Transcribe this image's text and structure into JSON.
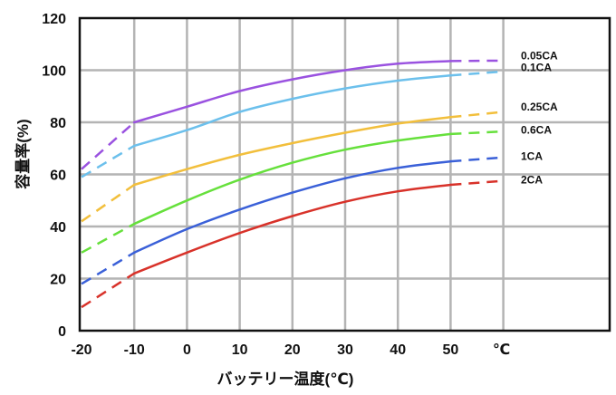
{
  "chart_data": {
    "type": "line",
    "xlabel": "バッテリー温度(℃)",
    "ylabel": "容量率(%)",
    "x_unit_tick": "℃",
    "xlim": [
      -20,
      60
    ],
    "ylim": [
      0,
      120
    ],
    "x_ticks": [
      "-20",
      "-10",
      "0",
      "10",
      "20",
      "30",
      "40",
      "50"
    ],
    "y_ticks": [
      "0",
      "20",
      "40",
      "60",
      "80",
      "100",
      "120"
    ],
    "grid": true,
    "legend": "inline labels at right end of each series",
    "colors": {
      "grid": "#b4b4b4",
      "axis": "#111111",
      "0.05CA": "#9a52e0",
      "0.1CA": "#6cc0ec",
      "0.25CA": "#f2bf3c",
      "0.6CA": "#66e03c",
      "1CA": "#3a60d8",
      "2CA": "#d8322a"
    },
    "series": [
      {
        "name": "0.05CA",
        "solid": [
          [
            -10,
            80
          ],
          [
            0,
            86
          ],
          [
            10,
            92
          ],
          [
            20,
            96.5
          ],
          [
            30,
            100
          ],
          [
            40,
            102.5
          ],
          [
            50,
            103.5
          ]
        ],
        "dashed_low": [
          [
            -20,
            62
          ],
          [
            -10,
            80
          ]
        ],
        "dashed_high": [
          [
            50,
            103.5
          ],
          [
            60,
            103.7
          ]
        ]
      },
      {
        "name": "0.1CA",
        "solid": [
          [
            -10,
            71
          ],
          [
            0,
            77
          ],
          [
            10,
            84
          ],
          [
            20,
            89
          ],
          [
            30,
            93
          ],
          [
            40,
            96
          ],
          [
            50,
            98
          ]
        ],
        "dashed_low": [
          [
            -20,
            59
          ],
          [
            -10,
            71
          ]
        ],
        "dashed_high": [
          [
            50,
            98
          ],
          [
            60,
            99.5
          ]
        ]
      },
      {
        "name": "0.25CA",
        "solid": [
          [
            -10,
            56
          ],
          [
            0,
            62
          ],
          [
            10,
            67.5
          ],
          [
            20,
            72
          ],
          [
            30,
            76
          ],
          [
            40,
            79.5
          ],
          [
            50,
            82
          ]
        ],
        "dashed_low": [
          [
            -20,
            42
          ],
          [
            -10,
            56
          ]
        ],
        "dashed_high": [
          [
            50,
            82
          ],
          [
            60,
            84
          ]
        ]
      },
      {
        "name": "0.6CA",
        "solid": [
          [
            -10,
            41
          ],
          [
            0,
            50
          ],
          [
            10,
            58
          ],
          [
            20,
            64.5
          ],
          [
            30,
            69.5
          ],
          [
            40,
            73
          ],
          [
            50,
            75.5
          ]
        ],
        "dashed_low": [
          [
            -20,
            30
          ],
          [
            -10,
            41
          ]
        ],
        "dashed_high": [
          [
            50,
            75.5
          ],
          [
            60,
            76.5
          ]
        ]
      },
      {
        "name": "1CA",
        "solid": [
          [
            -10,
            30
          ],
          [
            0,
            39
          ],
          [
            10,
            46.5
          ],
          [
            20,
            53
          ],
          [
            30,
            58.5
          ],
          [
            40,
            62.5
          ],
          [
            50,
            65
          ]
        ],
        "dashed_low": [
          [
            -20,
            18
          ],
          [
            -10,
            30
          ]
        ],
        "dashed_high": [
          [
            50,
            65
          ],
          [
            60,
            66.5
          ]
        ]
      },
      {
        "name": "2CA",
        "solid": [
          [
            -10,
            22
          ],
          [
            0,
            30
          ],
          [
            10,
            37.5
          ],
          [
            20,
            44
          ],
          [
            30,
            49.5
          ],
          [
            40,
            53.5
          ],
          [
            50,
            56
          ]
        ],
        "dashed_low": [
          [
            -20,
            9
          ],
          [
            -10,
            22
          ]
        ],
        "dashed_high": [
          [
            50,
            56
          ],
          [
            60,
            57.5
          ]
        ]
      }
    ]
  }
}
